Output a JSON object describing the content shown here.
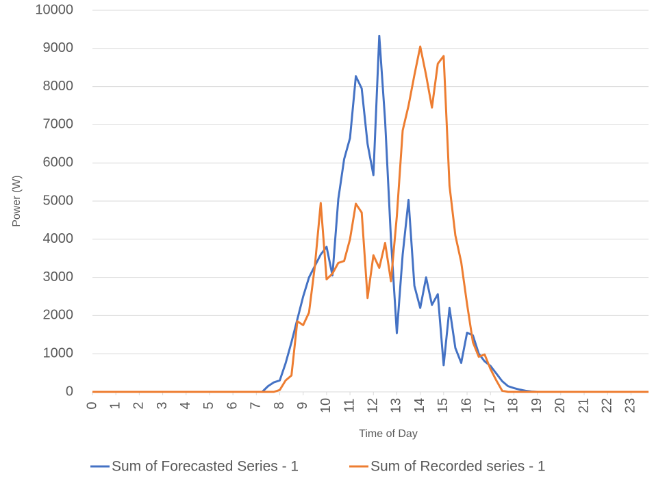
{
  "chart_data": {
    "type": "line",
    "x_label": "Time of Day",
    "y_label": "Power (W)",
    "x": [
      0,
      0.25,
      0.5,
      0.75,
      1,
      1.25,
      1.5,
      1.75,
      2,
      2.25,
      2.5,
      2.75,
      3,
      3.25,
      3.5,
      3.75,
      4,
      4.25,
      4.5,
      4.75,
      5,
      5.25,
      5.5,
      5.75,
      6,
      6.25,
      6.5,
      6.75,
      7,
      7.25,
      7.5,
      7.75,
      8,
      8.25,
      8.5,
      8.75,
      9,
      9.25,
      9.5,
      9.75,
      10,
      10.25,
      10.5,
      10.75,
      11,
      11.25,
      11.5,
      11.75,
      12,
      12.25,
      12.5,
      12.75,
      13,
      13.25,
      13.5,
      13.75,
      14,
      14.25,
      14.5,
      14.75,
      15,
      15.25,
      15.5,
      15.75,
      16,
      16.25,
      16.5,
      16.75,
      17,
      17.25,
      17.5,
      17.75,
      18,
      18.25,
      18.5,
      18.75,
      19,
      19.25,
      19.5,
      19.75,
      20,
      20.25,
      20.5,
      20.75,
      21,
      21.25,
      21.5,
      21.75,
      22,
      22.25,
      22.5,
      22.75,
      23,
      23.25,
      23.5,
      23.75
    ],
    "series": [
      {
        "name": "Sum of Forecasted Series - 1",
        "color": "#4472c4",
        "values": [
          0,
          0,
          0,
          0,
          0,
          0,
          0,
          0,
          0,
          0,
          0,
          0,
          0,
          0,
          0,
          0,
          0,
          0,
          0,
          0,
          0,
          0,
          0,
          0,
          0,
          0,
          0,
          0,
          0,
          0,
          150,
          250,
          300,
          750,
          1300,
          1900,
          2500,
          3000,
          3300,
          3600,
          3800,
          3050,
          5050,
          6100,
          6650,
          8270,
          7950,
          6500,
          5680,
          9330,
          7100,
          4000,
          1540,
          3600,
          5030,
          2780,
          2200,
          3000,
          2280,
          2560,
          700,
          2200,
          1150,
          760,
          1550,
          1480,
          1000,
          800,
          680,
          480,
          280,
          150,
          100,
          60,
          30,
          10,
          0,
          0,
          0,
          0,
          0,
          0,
          0,
          0,
          0,
          0,
          0,
          0,
          0,
          0,
          0,
          0,
          0,
          0,
          0,
          0
        ]
      },
      {
        "name": "Sum of Recorded series - 1",
        "color": "#ed7d31",
        "values": [
          0,
          0,
          0,
          0,
          0,
          0,
          0,
          0,
          0,
          0,
          0,
          0,
          0,
          0,
          0,
          0,
          0,
          0,
          0,
          0,
          0,
          0,
          0,
          0,
          0,
          0,
          0,
          0,
          0,
          0,
          0,
          0,
          50,
          300,
          430,
          1850,
          1750,
          2080,
          3300,
          4950,
          2950,
          3100,
          3380,
          3430,
          4000,
          4930,
          4700,
          2460,
          3580,
          3250,
          3900,
          2900,
          4600,
          6850,
          7500,
          8300,
          9050,
          8300,
          7450,
          8600,
          8800,
          5400,
          4100,
          3400,
          2300,
          1300,
          920,
          980,
          600,
          300,
          30,
          0,
          0,
          0,
          0,
          0,
          0,
          0,
          0,
          0,
          0,
          0,
          0,
          0,
          0,
          0,
          0,
          0,
          0,
          0,
          0,
          0,
          0,
          0,
          0,
          0
        ]
      }
    ],
    "xlim": [
      0,
      23.75
    ],
    "xticks": [
      0,
      1,
      2,
      3,
      4,
      5,
      6,
      7,
      8,
      9,
      10,
      11,
      12,
      13,
      14,
      15,
      16,
      17,
      18,
      19,
      20,
      21,
      22,
      23
    ],
    "ylim": [
      0,
      10000
    ],
    "yticks": [
      0,
      1000,
      2000,
      3000,
      4000,
      5000,
      6000,
      7000,
      8000,
      9000,
      10000
    ],
    "grid": true,
    "legend": "bottom"
  }
}
